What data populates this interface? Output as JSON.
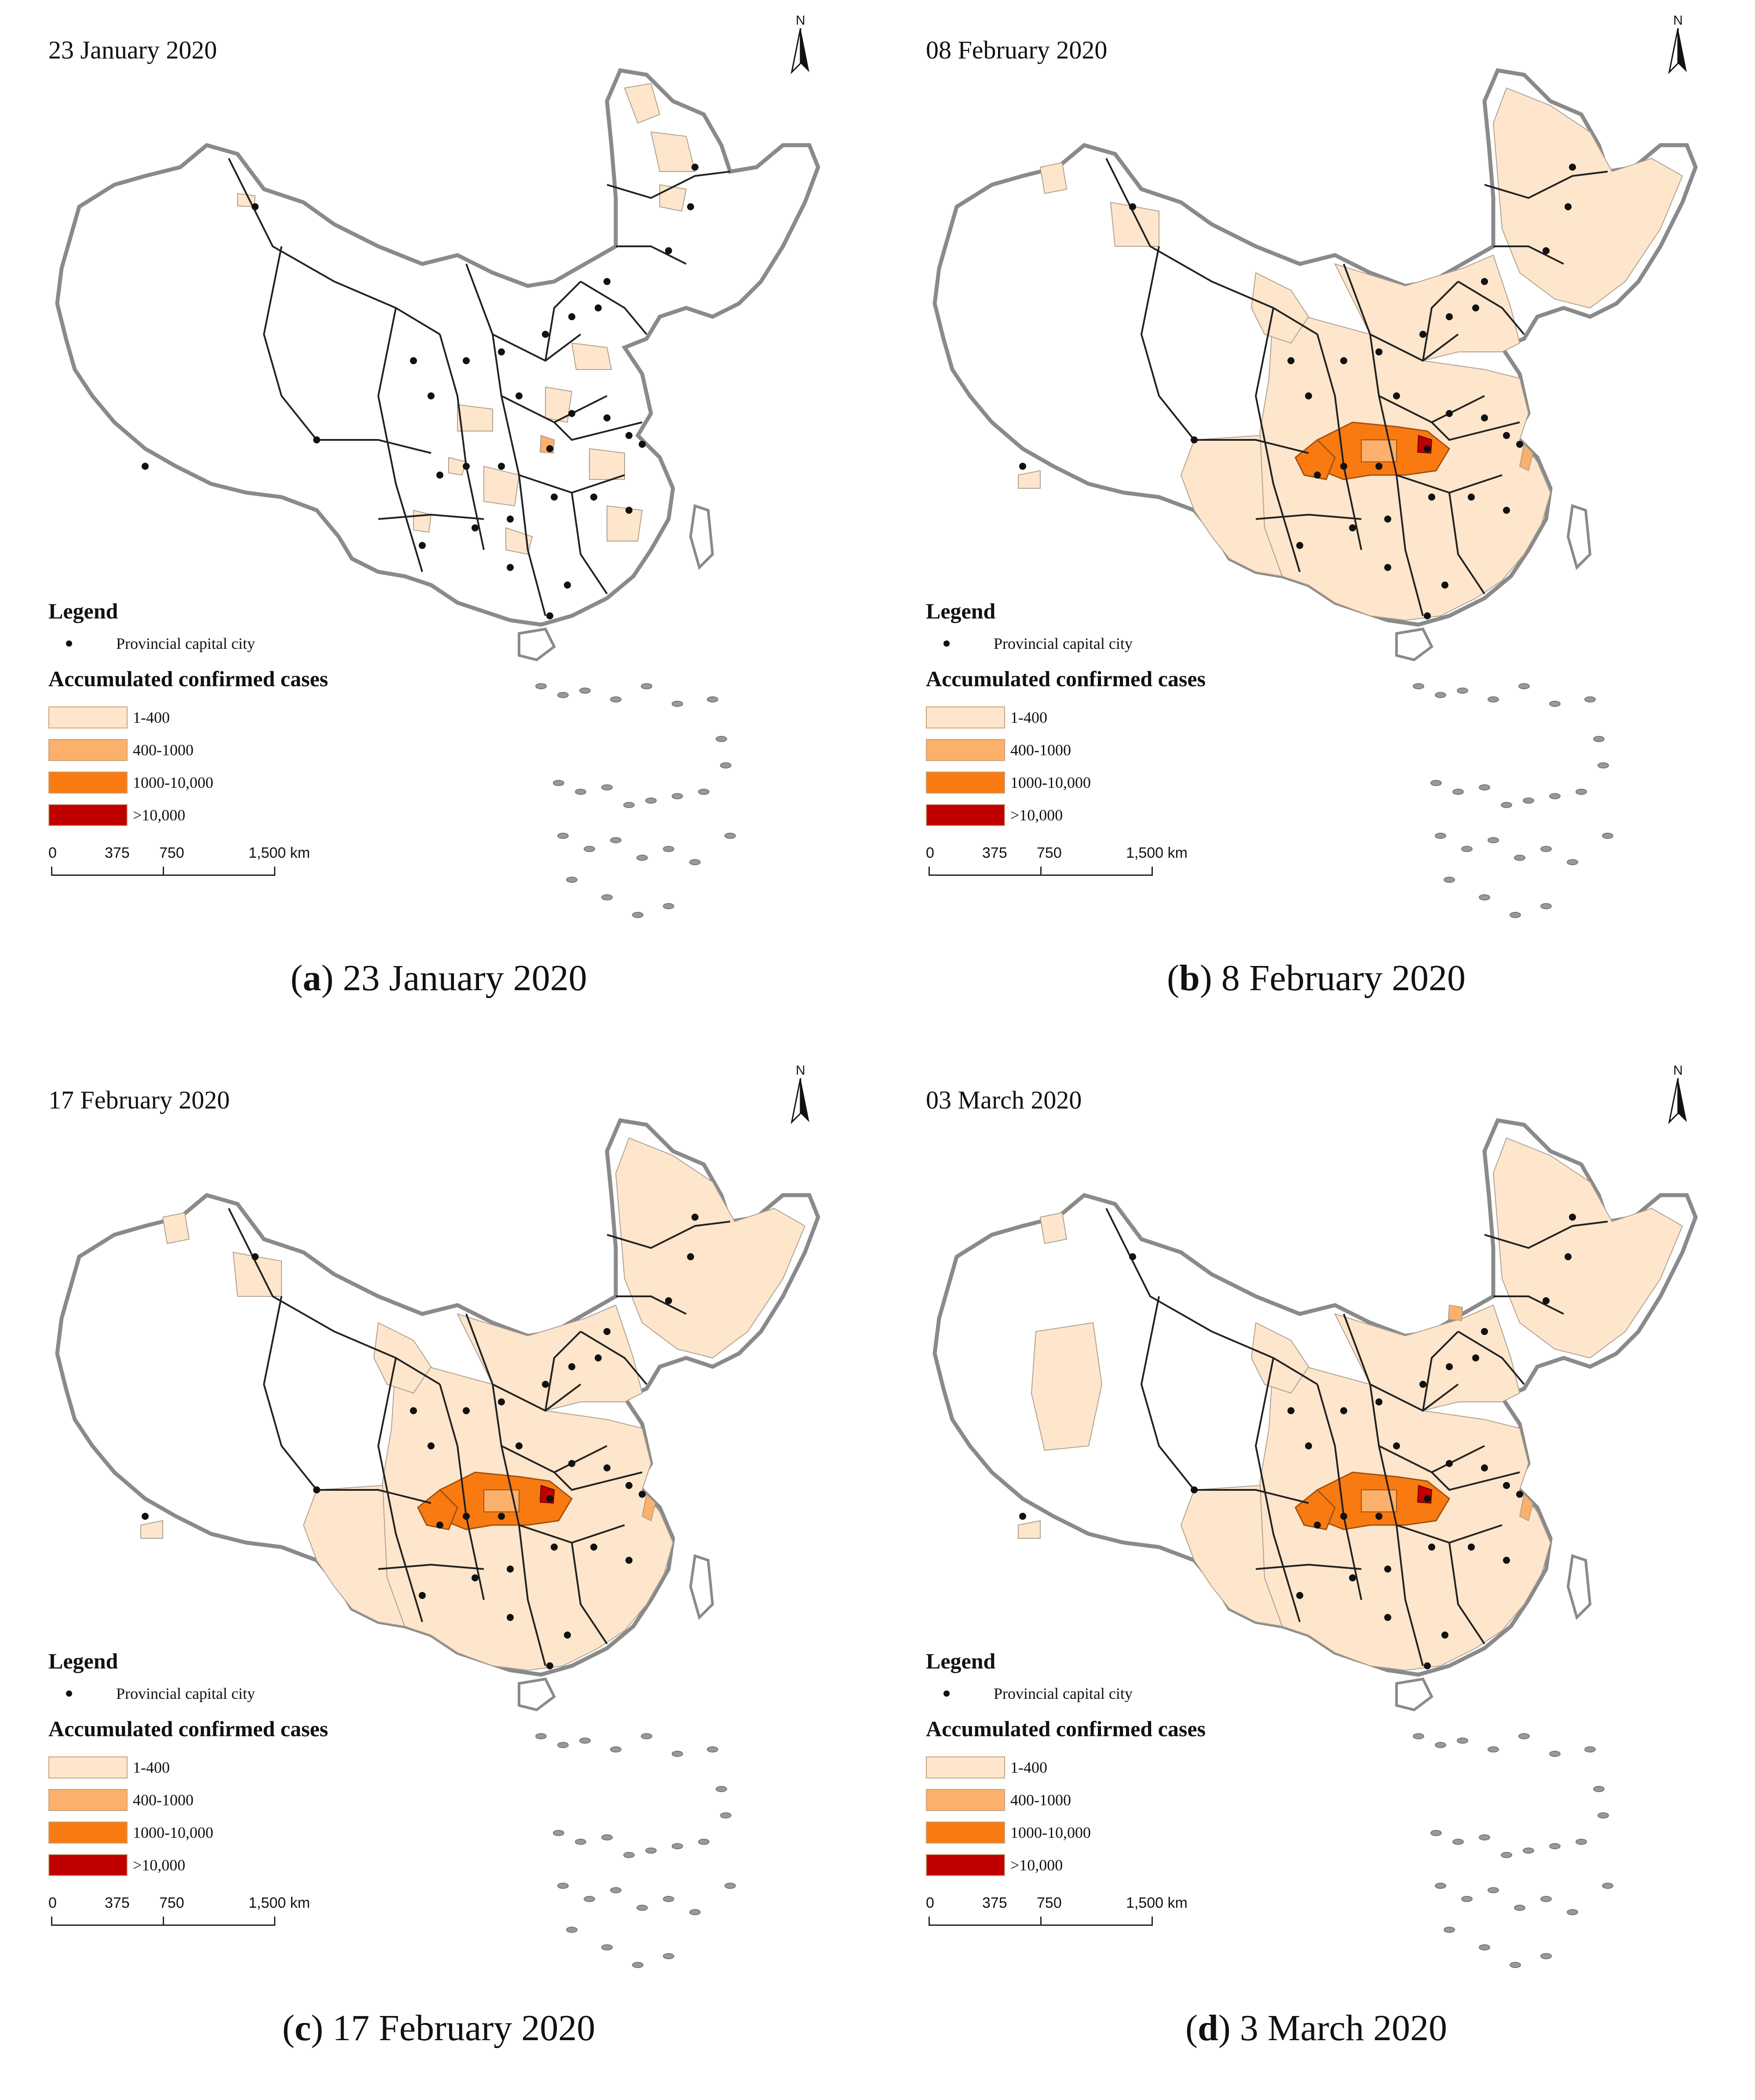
{
  "legend": {
    "title": "Legend",
    "capital_label": "Provincial capital city",
    "classes_title": "Accumulated confirmed cases",
    "classes": [
      {
        "label": "1-400",
        "color": "#fde6cc"
      },
      {
        "label": "400-1000",
        "color": "#fbb06b"
      },
      {
        "label": "1000-10,000",
        "color": "#f97a10"
      },
      {
        "label": ">10,000",
        "color": "#c00000"
      }
    ]
  },
  "north_arrow_label": "N",
  "scale_bar": {
    "ticks": [
      "0",
      "375",
      "750",
      "1,500 km"
    ]
  },
  "panels": [
    {
      "date": "23 January 2020",
      "caption_letter": "a",
      "caption_text": " 23 January 2020"
    },
    {
      "date": "08 February 2020",
      "caption_letter": "b",
      "caption_text": " 8 February 2020"
    },
    {
      "date": "17 February 2020",
      "caption_letter": "c",
      "caption_text": " 17 February 2020"
    },
    {
      "date": "03 March 2020",
      "caption_letter": "d",
      "caption_text": " 3 March 2020"
    }
  ],
  "colors": {
    "outline": "#8a8a8a",
    "province_line": "#222222",
    "light": "#fde6cc",
    "mid": "#fbb06b",
    "high": "#f97a10",
    "max": "#c00000"
  }
}
